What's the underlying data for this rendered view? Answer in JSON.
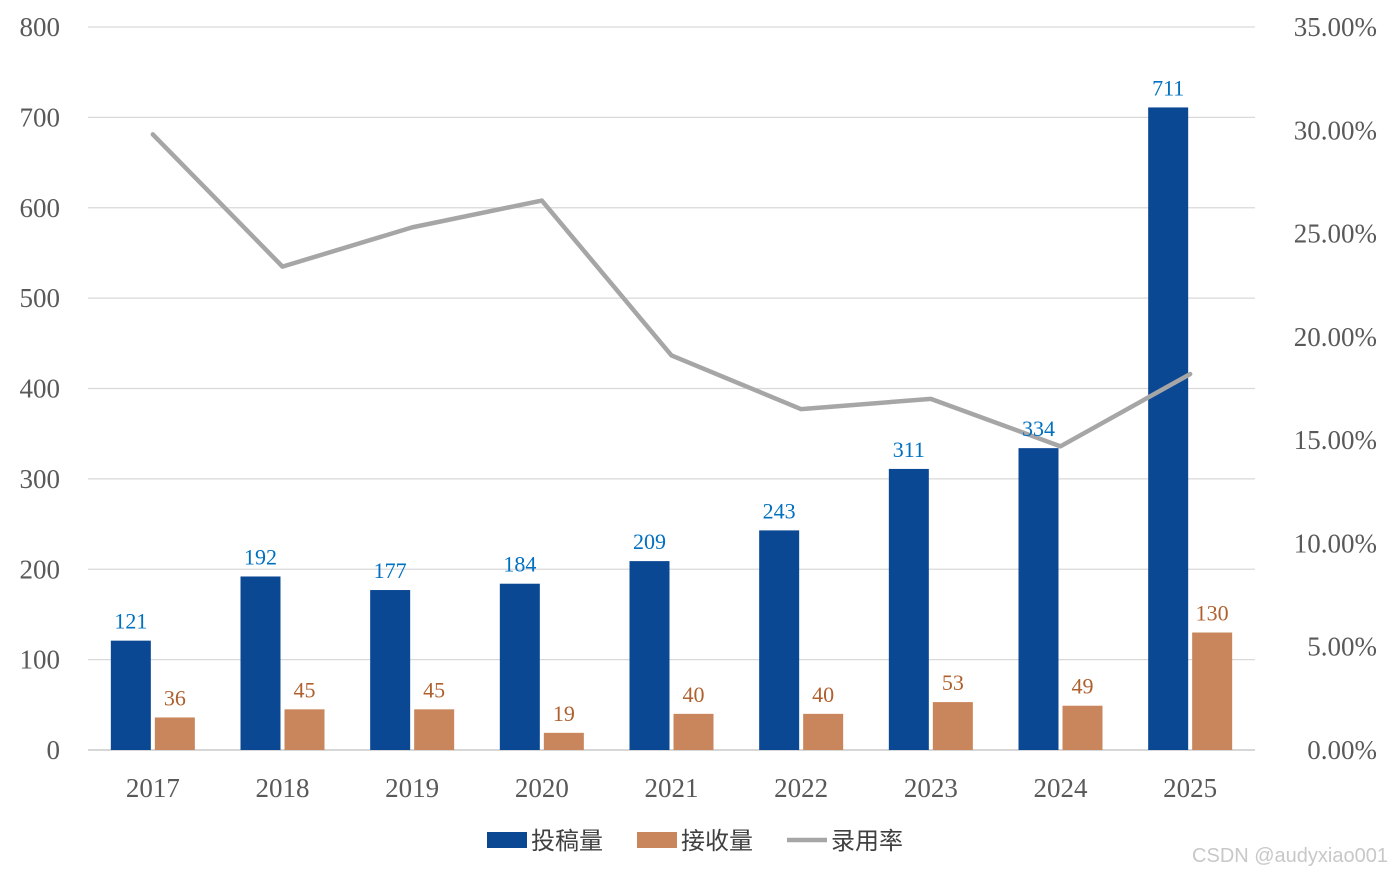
{
  "chart_data": {
    "type": "bar",
    "categories": [
      "2017",
      "2018",
      "2019",
      "2020",
      "2021",
      "2022",
      "2023",
      "2024",
      "2025"
    ],
    "series": [
      {
        "name": "投稿量",
        "kind": "bar",
        "axis": "left",
        "color": "#0B4894",
        "label_color": "#0070C0",
        "values": [
          121,
          192,
          177,
          184,
          209,
          243,
          311,
          334,
          711
        ]
      },
      {
        "name": "接收量",
        "kind": "bar",
        "axis": "left",
        "color": "#C9855C",
        "label_color": "#B0602E",
        "values": [
          36,
          45,
          45,
          19,
          40,
          40,
          53,
          49,
          130
        ]
      },
      {
        "name": "录用率",
        "kind": "line",
        "axis": "right",
        "color": "#A6A6A6",
        "values": [
          29.8,
          23.4,
          25.3,
          26.6,
          19.1,
          16.5,
          17.0,
          14.7,
          18.2
        ]
      }
    ],
    "y_left": {
      "min": 0,
      "max": 800,
      "ticks": [
        "0",
        "100",
        "200",
        "300",
        "400",
        "500",
        "600",
        "700",
        "800"
      ]
    },
    "y_right": {
      "min": 0,
      "max": 35,
      "ticks": [
        "0.00%",
        "5.00%",
        "10.00%",
        "15.00%",
        "20.00%",
        "25.00%",
        "30.00%",
        "35.00%"
      ]
    },
    "grid": true,
    "legend_position": "bottom"
  },
  "watermark": "CSDN @audyxiao001"
}
